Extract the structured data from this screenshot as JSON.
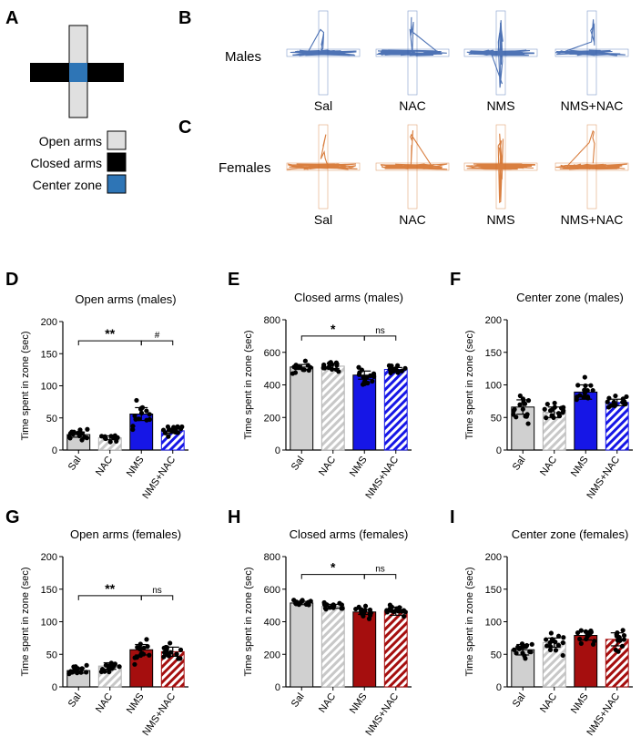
{
  "colors": {
    "male_track": "#2f5aa8",
    "female_track": "#d2691e",
    "open_arm": "#e0e0e0",
    "closed_arm": "#000000",
    "center": "#2e75b6",
    "male_nms": "#1616e6",
    "female_nms": "#a50e0e",
    "sal_bar": "#d0d0d0"
  },
  "panel_a": {
    "letter": "A",
    "legend": [
      {
        "label": "Open arms",
        "color": "#e0e0e0"
      },
      {
        "label": "Closed arms",
        "color": "#000000"
      },
      {
        "label": "Center zone",
        "color": "#2e75b6"
      }
    ]
  },
  "panel_b": {
    "letter": "B",
    "row_label": "Males",
    "groups": [
      "Sal",
      "NAC",
      "NMS",
      "NMS+NAC"
    ]
  },
  "panel_c": {
    "letter": "C",
    "row_label": "Females",
    "groups": [
      "Sal",
      "NAC",
      "NMS",
      "NMS+NAC"
    ]
  },
  "chart_data": [
    {
      "id": "D",
      "type": "bar",
      "title": "Open arms (males)",
      "sex": "male",
      "ylabel": "Time spent in zone (sec)",
      "ylim": [
        0,
        200
      ],
      "yticks": [
        0,
        50,
        100,
        150,
        200
      ],
      "categories": [
        "Sal",
        "NAC",
        "NMS",
        "NMS+NAC"
      ],
      "values": [
        24,
        19,
        56,
        30
      ],
      "sem": [
        4,
        3,
        10,
        4
      ],
      "annotations": [
        {
          "from": 0,
          "to": 2,
          "label": "**",
          "y": 170
        },
        {
          "from": 2,
          "to": 3,
          "label": "#",
          "y": 170
        }
      ]
    },
    {
      "id": "E",
      "type": "bar",
      "title": "Closed arms (males)",
      "sex": "male",
      "ylabel": "Time spent in zone (sec)",
      "ylim": [
        0,
        800
      ],
      "yticks": [
        0,
        200,
        400,
        600,
        800
      ],
      "categories": [
        "Sal",
        "NAC",
        "NMS",
        "NMS+NAC"
      ],
      "values": [
        510,
        515,
        460,
        495
      ],
      "sem": [
        15,
        15,
        25,
        12
      ],
      "annotations": [
        {
          "from": 0,
          "to": 2,
          "label": "*",
          "y": 700
        },
        {
          "from": 2,
          "to": 3,
          "label": "ns",
          "y": 700
        }
      ]
    },
    {
      "id": "F",
      "type": "bar",
      "title": "Center zone (males)",
      "sex": "male",
      "ylabel": "Time spent in zone (sec)",
      "ylim": [
        0,
        200
      ],
      "yticks": [
        0,
        50,
        100,
        150,
        200
      ],
      "categories": [
        "Sal",
        "NAC",
        "NMS",
        "NMS+NAC"
      ],
      "values": [
        66,
        58,
        89,
        73
      ],
      "sem": [
        11,
        8,
        11,
        5
      ],
      "annotations": []
    },
    {
      "id": "G",
      "type": "bar",
      "title": "Open arms (females)",
      "sex": "female",
      "ylabel": "Time spent in zone (sec)",
      "ylim": [
        0,
        200
      ],
      "yticks": [
        0,
        50,
        100,
        150,
        200
      ],
      "categories": [
        "Sal",
        "NAC",
        "NMS",
        "NMS+NAC"
      ],
      "values": [
        25,
        32,
        57,
        54
      ],
      "sem": [
        4,
        5,
        8,
        7
      ],
      "annotations": [
        {
          "from": 0,
          "to": 2,
          "label": "**",
          "y": 140
        },
        {
          "from": 2,
          "to": 3,
          "label": "ns",
          "y": 140
        }
      ]
    },
    {
      "id": "H",
      "type": "bar",
      "title": "Closed arms (females)",
      "sex": "female",
      "ylabel": "Time spent in zone (sec)",
      "ylim": [
        0,
        800
      ],
      "yticks": [
        0,
        200,
        400,
        600,
        800
      ],
      "categories": [
        "Sal",
        "NAC",
        "NMS",
        "NMS+NAC"
      ],
      "values": [
        515,
        495,
        460,
        465
      ],
      "sem": [
        10,
        12,
        15,
        25
      ],
      "annotations": [
        {
          "from": 0,
          "to": 2,
          "label": "*",
          "y": 690
        },
        {
          "from": 2,
          "to": 3,
          "label": "ns",
          "y": 690
        }
      ]
    },
    {
      "id": "I",
      "type": "bar",
      "title": "Center zone (females)",
      "sex": "female",
      "ylabel": "Time spent in zone (sec)",
      "ylim": [
        0,
        200
      ],
      "yticks": [
        0,
        50,
        100,
        150,
        200
      ],
      "categories": [
        "Sal",
        "NAC",
        "NMS",
        "NMS+NAC"
      ],
      "values": [
        57,
        68,
        79,
        73
      ],
      "sem": [
        8,
        7,
        7,
        10
      ],
      "annotations": []
    }
  ]
}
